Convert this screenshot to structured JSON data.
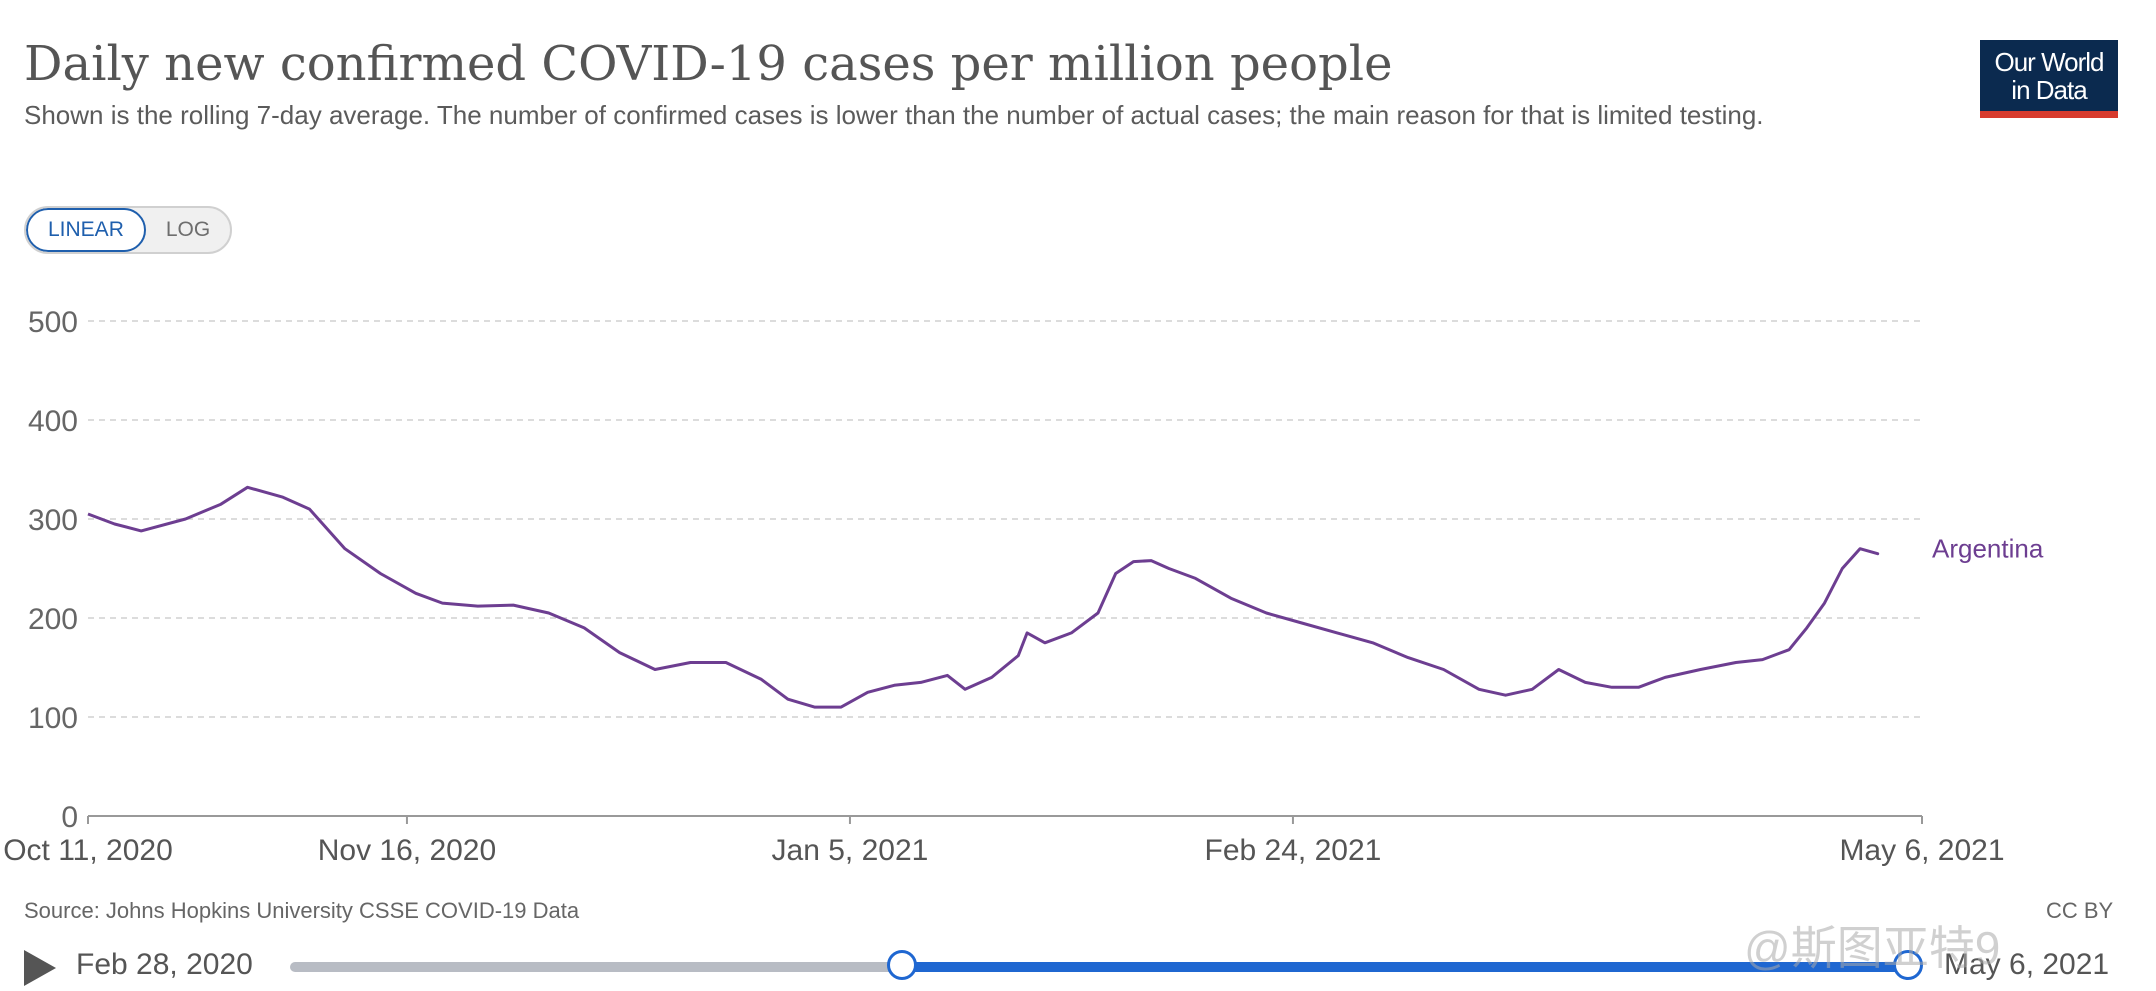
{
  "header": {
    "title": "Daily new confirmed COVID-19 cases per million people",
    "subtitle": "Shown is the rolling 7-day average. The number of confirmed cases is lower than the number of actual cases; the main reason for that is limited testing.",
    "logo_line1": "Our World",
    "logo_line2": "in Data"
  },
  "controls": {
    "linear_label": "LINEAR",
    "log_label": "LOG",
    "active": "linear"
  },
  "footer": {
    "source": "Source: Johns Hopkins University CSSE COVID-19 Data",
    "license": "CC BY",
    "watermark": "@斯图亚特9"
  },
  "timeline": {
    "start_label": "Feb 28, 2020",
    "end_label": "May 6, 2021",
    "selection_start_fraction": 0.378,
    "selection_end_fraction": 1.0
  },
  "colors": {
    "Argentina": "#6d3e91",
    "Chile": "#a2391b",
    "Brazil": "#374060",
    "Peru": "#20887a",
    "accent": "#1f67d1",
    "grid": "#d0d0d0"
  },
  "chart_data": {
    "type": "line",
    "title": "Daily new confirmed COVID-19 cases per million people",
    "x_range": [
      "2020-10-11",
      "2021-05-06"
    ],
    "x_ticks": [
      {
        "date": "2020-10-11",
        "label": "Oct 11, 2020"
      },
      {
        "date": "2020-11-16",
        "label": "Nov 16, 2020"
      },
      {
        "date": "2021-01-05",
        "label": "Jan 5, 2021"
      },
      {
        "date": "2021-02-24",
        "label": "Feb 24, 2021"
      },
      {
        "date": "2021-05-06",
        "label": "May 6, 2021"
      }
    ],
    "y_ticks": [
      0,
      100,
      200,
      300,
      400,
      500
    ],
    "ylim": [
      0,
      550
    ],
    "grid": true,
    "legend": "end-of-line labels",
    "series": [
      {
        "name": "Argentina",
        "points": [
          [
            "2020-10-11",
            305
          ],
          [
            "2020-10-14",
            295
          ],
          [
            "2020-10-17",
            288
          ],
          [
            "2020-10-22",
            300
          ],
          [
            "2020-10-26",
            315
          ],
          [
            "2020-10-29",
            332
          ],
          [
            "2020-11-02",
            322
          ],
          [
            "2020-11-05",
            310
          ],
          [
            "2020-11-09",
            270
          ],
          [
            "2020-11-13",
            245
          ],
          [
            "2020-11-17",
            225
          ],
          [
            "2020-11-20",
            215
          ],
          [
            "2020-11-24",
            212
          ],
          [
            "2020-11-28",
            213
          ],
          [
            "2020-12-02",
            205
          ],
          [
            "2020-12-06",
            190
          ],
          [
            "2020-12-10",
            165
          ],
          [
            "2020-12-14",
            148
          ],
          [
            "2020-12-18",
            155
          ],
          [
            "2020-12-22",
            155
          ],
          [
            "2020-12-26",
            138
          ],
          [
            "2020-12-29",
            118
          ],
          [
            "2021-01-01",
            110
          ],
          [
            "2021-01-04",
            110
          ],
          [
            "2021-01-07",
            125
          ],
          [
            "2021-01-10",
            132
          ],
          [
            "2021-01-13",
            135
          ],
          [
            "2021-01-16",
            142
          ],
          [
            "2021-01-18",
            128
          ],
          [
            "2021-01-21",
            140
          ],
          [
            "2021-01-24",
            162
          ],
          [
            "2021-01-25",
            185
          ],
          [
            "2021-01-27",
            175
          ],
          [
            "2021-01-30",
            185
          ],
          [
            "2021-02-02",
            205
          ],
          [
            "2021-02-04",
            245
          ],
          [
            "2021-02-06",
            257
          ],
          [
            "2021-02-08",
            258
          ],
          [
            "2021-02-10",
            250
          ],
          [
            "2021-02-13",
            240
          ],
          [
            "2021-02-17",
            220
          ],
          [
            "2021-02-21",
            205
          ],
          [
            "2021-02-25",
            195
          ],
          [
            "2021-03-01",
            185
          ],
          [
            "2021-03-05",
            175
          ],
          [
            "2021-03-09",
            160
          ],
          [
            "2021-03-13",
            148
          ],
          [
            "2021-03-17",
            128
          ],
          [
            "2021-03-20",
            122
          ],
          [
            "2021-03-23",
            128
          ],
          [
            "2021-03-26",
            148
          ],
          [
            "2021-03-29",
            135
          ],
          [
            "2021-04-01",
            130
          ],
          [
            "2021-04-04",
            130
          ],
          [
            "2021-04-07",
            140
          ],
          [
            "2021-04-11",
            148
          ],
          [
            "2021-04-15",
            155
          ],
          [
            "2021-04-18",
            158
          ],
          [
            "2021-04-21",
            168
          ],
          [
            "2021-04-23",
            190
          ],
          [
            "2021-04-25",
            215
          ],
          [
            "2021-04-27",
            250
          ],
          [
            "2021-04-29",
            270
          ],
          [
            "2021-05-01",
            265
          ],
          [
            "2021-04-29",
            270
          ]
        ]
      }
    ]
  }
}
